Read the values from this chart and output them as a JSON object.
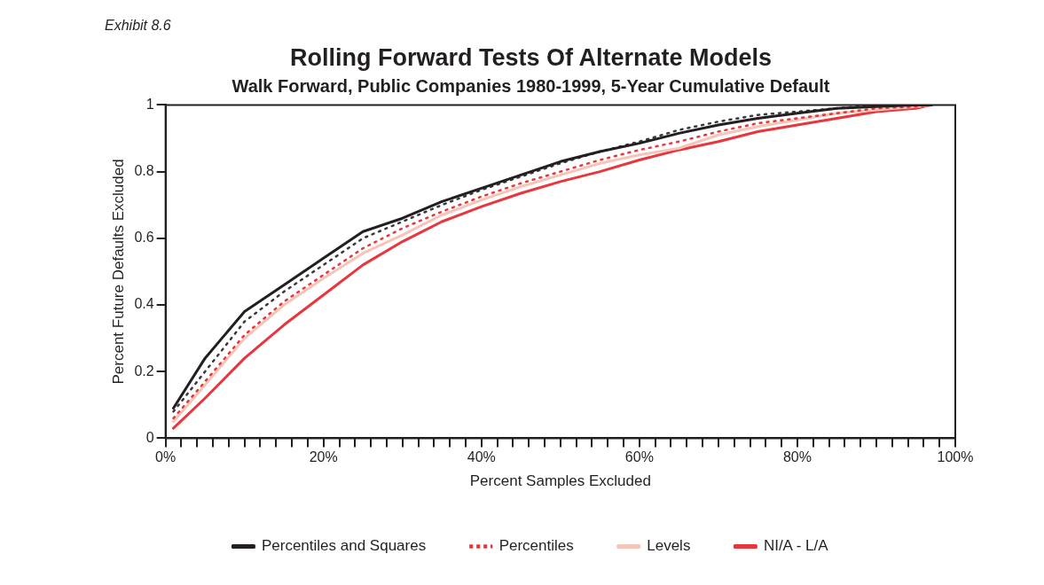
{
  "chart_data": {
    "type": "line",
    "title": "Rolling Forward Tests Of Alternate Models",
    "subtitle": "Walk Forward, Public Companies 1980-1999, 5-Year Cumulative Default",
    "annotations": [
      "Exhibit 8.6"
    ],
    "xlabel": "Percent Samples Excluded",
    "ylabel": "Percent Future Defaults Excluded",
    "x": [
      1,
      5,
      10,
      15,
      20,
      25,
      30,
      35,
      40,
      45,
      50,
      55,
      60,
      65,
      70,
      75,
      80,
      85,
      90,
      95,
      97
    ],
    "series": [
      {
        "name": "Percentiles and Squares",
        "color": "#231f20",
        "line_style": "solid",
        "values": [
          0.09,
          0.24,
          0.38,
          0.46,
          0.54,
          0.62,
          0.66,
          0.71,
          0.75,
          0.79,
          0.83,
          0.86,
          0.885,
          0.915,
          0.94,
          0.96,
          0.975,
          0.99,
          0.995,
          1.0,
          1.0
        ]
      },
      {
        "color": "#3a3a3a",
        "line_style": "dotted",
        "values": [
          0.08,
          0.2,
          0.35,
          0.44,
          0.52,
          0.6,
          0.65,
          0.7,
          0.745,
          0.785,
          0.825,
          0.86,
          0.89,
          0.925,
          0.95,
          0.97,
          0.98,
          0.99,
          1.0,
          1.0,
          1.0
        ]
      },
      {
        "name": "Percentiles",
        "color": "#e8363d",
        "line_style": "dotted",
        "values": [
          0.06,
          0.17,
          0.31,
          0.41,
          0.49,
          0.57,
          0.63,
          0.68,
          0.725,
          0.765,
          0.8,
          0.835,
          0.865,
          0.89,
          0.92,
          0.945,
          0.96,
          0.975,
          0.99,
          0.995,
          1.0
        ]
      },
      {
        "name": "Levels",
        "color": "#f6c4b8",
        "line_style": "solid",
        "values": [
          0.05,
          0.16,
          0.3,
          0.4,
          0.48,
          0.555,
          0.61,
          0.67,
          0.715,
          0.755,
          0.79,
          0.825,
          0.85,
          0.87,
          0.91,
          0.935,
          0.955,
          0.975,
          0.985,
          0.995,
          1.0
        ]
      },
      {
        "name": "NI/A - L/A",
        "color": "#e8363d",
        "line_style": "solid",
        "values": [
          0.03,
          0.12,
          0.24,
          0.34,
          0.43,
          0.52,
          0.59,
          0.65,
          0.695,
          0.735,
          0.77,
          0.8,
          0.835,
          0.865,
          0.89,
          0.92,
          0.94,
          0.96,
          0.98,
          0.99,
          1.0
        ]
      }
    ],
    "xlim": [
      0,
      100
    ],
    "xticks": [
      {
        "value": 0,
        "label": "0%"
      },
      {
        "value": 2,
        "label": null
      },
      {
        "value": 4,
        "label": null
      },
      {
        "value": 6,
        "label": null
      },
      {
        "value": 8,
        "label": null
      },
      {
        "value": 10,
        "label": null
      },
      {
        "value": 12,
        "label": null
      },
      {
        "value": 14,
        "label": null
      },
      {
        "value": 16,
        "label": null
      },
      {
        "value": 18,
        "label": null
      },
      {
        "value": 20,
        "label": "20%"
      },
      {
        "value": 22,
        "label": null
      },
      {
        "value": 24,
        "label": null
      },
      {
        "value": 26,
        "label": null
      },
      {
        "value": 28,
        "label": null
      },
      {
        "value": 30,
        "label": null
      },
      {
        "value": 32,
        "label": null
      },
      {
        "value": 34,
        "label": null
      },
      {
        "value": 36,
        "label": null
      },
      {
        "value": 38,
        "label": null
      },
      {
        "value": 40,
        "label": "40%"
      },
      {
        "value": 42,
        "label": null
      },
      {
        "value": 44,
        "label": null
      },
      {
        "value": 46,
        "label": null
      },
      {
        "value": 48,
        "label": null
      },
      {
        "value": 50,
        "label": null
      },
      {
        "value": 52,
        "label": null
      },
      {
        "value": 54,
        "label": null
      },
      {
        "value": 56,
        "label": null
      },
      {
        "value": 58,
        "label": null
      },
      {
        "value": 60,
        "label": "60%"
      },
      {
        "value": 62,
        "label": null
      },
      {
        "value": 64,
        "label": null
      },
      {
        "value": 66,
        "label": null
      },
      {
        "value": 68,
        "label": null
      },
      {
        "value": 70,
        "label": null
      },
      {
        "value": 72,
        "label": null
      },
      {
        "value": 74,
        "label": null
      },
      {
        "value": 76,
        "label": null
      },
      {
        "value": 78,
        "label": null
      },
      {
        "value": 80,
        "label": "80%"
      },
      {
        "value": 82,
        "label": null
      },
      {
        "value": 84,
        "label": null
      },
      {
        "value": 86,
        "label": null
      },
      {
        "value": 88,
        "label": null
      },
      {
        "value": 90,
        "label": null
      },
      {
        "value": 92,
        "label": null
      },
      {
        "value": 94,
        "label": null
      },
      {
        "value": 96,
        "label": null
      },
      {
        "value": 98,
        "label": null
      },
      {
        "value": 100,
        "label": "100%"
      }
    ],
    "ylim": [
      0,
      1
    ],
    "yticks": [
      0,
      0.2,
      0.4,
      0.6,
      0.8,
      1
    ],
    "legend": "bottom",
    "marker": "none"
  }
}
